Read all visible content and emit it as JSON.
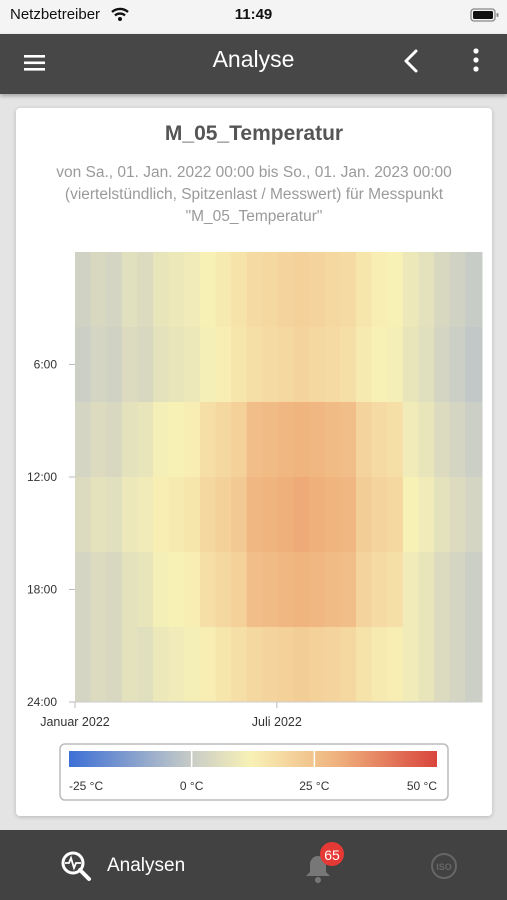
{
  "status_bar": {
    "carrier": "Netzbetreiber",
    "time": "11:49"
  },
  "app_bar": {
    "title": "Analyse"
  },
  "chart_data": {
    "type": "heatmap",
    "title": "M_05_Temperatur",
    "subtitle": "von Sa., 01. Jan. 2022 00:00 bis So., 01. Jan. 2023 00:00 (viertelstündlich, Spitzenlast / Messwert) für Messpunkt \"M_05_Temperatur\"",
    "x": [
      0,
      14,
      28,
      42,
      56,
      70,
      84,
      98,
      112,
      126,
      140,
      154,
      168,
      182,
      196,
      210,
      224,
      238,
      252,
      266,
      280,
      294,
      308,
      322,
      336,
      350,
      365
    ],
    "y": [
      0,
      4,
      8,
      12,
      16,
      20,
      24
    ],
    "values": [
      [
        2,
        4,
        3,
        6,
        5,
        8,
        9,
        10,
        12,
        14,
        16,
        18,
        19,
        20,
        21,
        20,
        19,
        18,
        15,
        13,
        12,
        9,
        7,
        4,
        2,
        0
      ],
      [
        1,
        3,
        2,
        5,
        4,
        7,
        8,
        9,
        11,
        13,
        15,
        17,
        18,
        19,
        20,
        19,
        18,
        17,
        14,
        12,
        11,
        8,
        6,
        3,
        1,
        -1
      ],
      [
        3,
        5,
        4,
        7,
        8,
        11,
        12,
        13,
        17,
        19,
        21,
        26,
        27,
        28,
        29,
        28,
        27,
        26,
        20,
        18,
        17,
        10,
        8,
        5,
        3,
        1
      ],
      [
        5,
        7,
        6,
        9,
        10,
        13,
        14,
        15,
        19,
        21,
        23,
        28,
        29,
        30,
        31,
        30,
        29,
        28,
        22,
        20,
        19,
        12,
        10,
        7,
        5,
        3
      ],
      [
        3,
        5,
        4,
        7,
        8,
        11,
        12,
        13,
        17,
        19,
        21,
        26,
        27,
        28,
        29,
        28,
        27,
        26,
        20,
        18,
        17,
        10,
        8,
        5,
        3,
        1
      ],
      [
        3,
        5,
        4,
        7,
        6,
        9,
        10,
        11,
        13,
        15,
        17,
        19,
        20,
        21,
        22,
        21,
        20,
        19,
        16,
        14,
        13,
        10,
        8,
        5,
        3,
        1
      ]
    ],
    "xlim": [
      0,
      365
    ],
    "xticks": [
      {
        "value": 0,
        "label": "Januar 2022"
      },
      {
        "value": 181,
        "label": "Juli 2022"
      }
    ],
    "ylim": [
      0,
      24
    ],
    "yticks": [
      {
        "value": 6,
        "label": "6:00"
      },
      {
        "value": 12,
        "label": "12:00"
      },
      {
        "value": 18,
        "label": "18:00"
      },
      {
        "value": 24,
        "label": "24:00"
      }
    ],
    "zlim": [
      -25,
      50
    ],
    "zticks": [
      {
        "value": -25,
        "label": "-25 °C"
      },
      {
        "value": 0,
        "label": "0 °C"
      },
      {
        "value": 25,
        "label": "25 °C"
      },
      {
        "value": 50,
        "label": "50 °C"
      }
    ],
    "colorscale": [
      [
        -25,
        "#3d6fd6"
      ],
      [
        0,
        "#c8ccc6"
      ],
      [
        12,
        "#f8f1b6"
      ],
      [
        30,
        "#efb07c"
      ],
      [
        50,
        "#d8453c"
      ]
    ]
  },
  "bottom_nav": {
    "tab": "Analysen",
    "badge": "65"
  }
}
